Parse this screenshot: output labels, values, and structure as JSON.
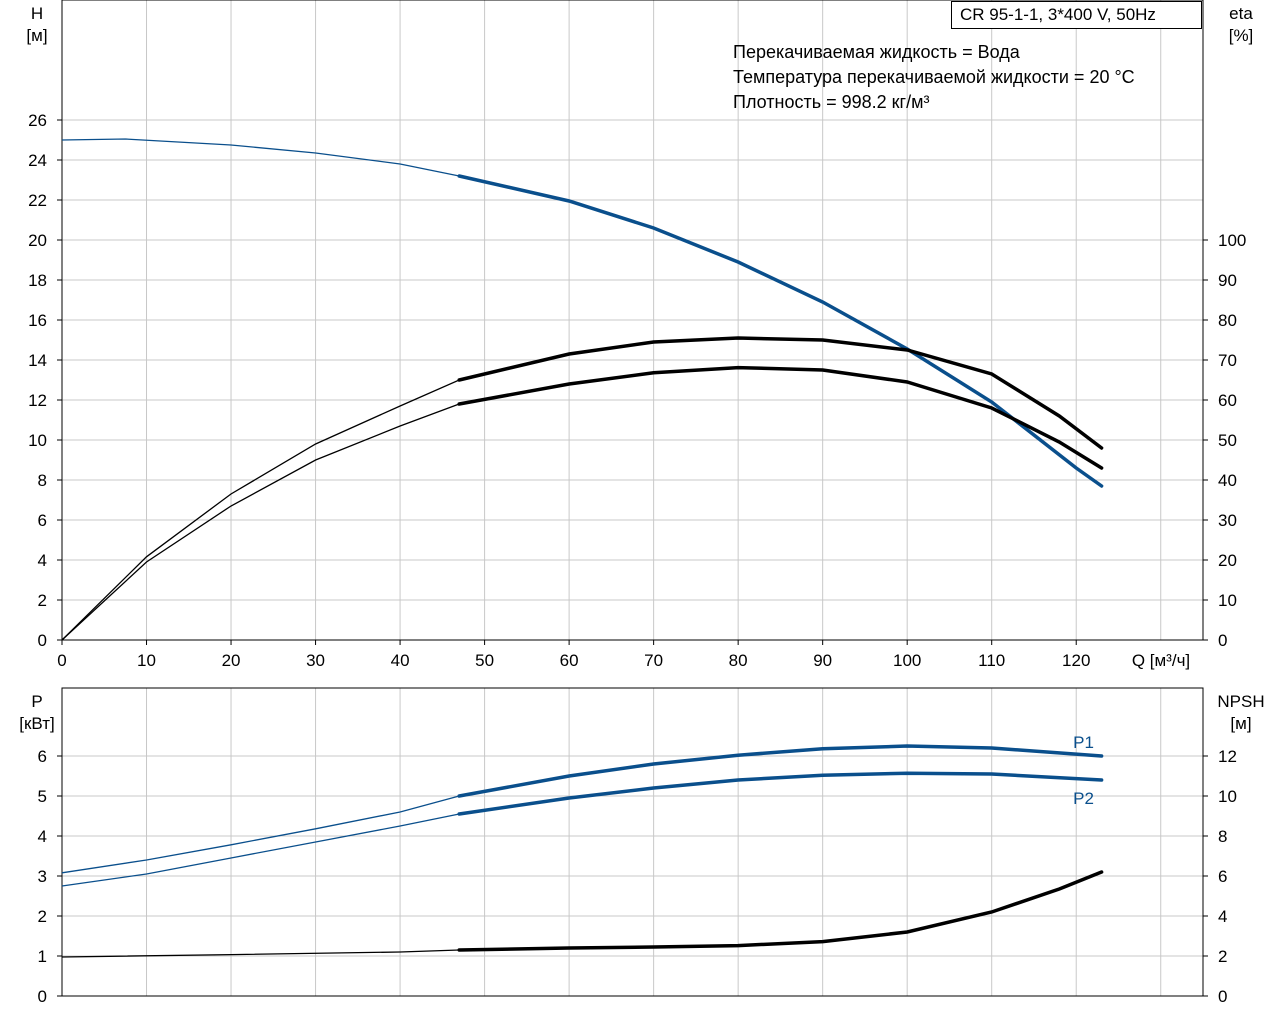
{
  "title_box": "CR 95-1-1, 3*400 V, 50Hz",
  "info_lines": [
    "Перекачиваемая жидкость = Вода",
    "Температура перекачиваемой жидкости = 20 °C",
    "Плотность = 998.2 кг/м³"
  ],
  "colors": {
    "blue": "#0a4f8c",
    "black": "#000000",
    "grid": "#c8c8c8"
  },
  "chart_data": [
    {
      "type": "line",
      "x_axis": {
        "label": "Q [м³/ч]",
        "range": [
          0,
          135
        ],
        "ticks": [
          0,
          10,
          20,
          30,
          40,
          50,
          60,
          70,
          80,
          90,
          100,
          110,
          120
        ]
      },
      "y_left": {
        "label_top": "H",
        "label_unit": "[м]",
        "range": [
          0,
          32
        ],
        "ticks": [
          0,
          2,
          4,
          6,
          8,
          10,
          12,
          14,
          16,
          18,
          20,
          22,
          24,
          26
        ]
      },
      "y_right": {
        "label_top": "eta",
        "label_unit": "[%]",
        "range": [
          0,
          160
        ],
        "ticks": [
          0,
          10,
          20,
          30,
          40,
          50,
          60,
          70,
          80,
          90,
          100
        ]
      },
      "grid": true,
      "operating_range": [
        47,
        123
      ],
      "series": [
        {
          "axis": "left",
          "color": "#0a4f8c",
          "x": [
            0,
            7.5,
            20,
            30,
            40,
            47,
            60,
            70,
            80,
            90,
            100,
            110,
            120,
            123
          ],
          "y": [
            25.0,
            25.05,
            24.75,
            24.35,
            23.8,
            23.2,
            21.95,
            20.6,
            18.9,
            16.9,
            14.55,
            11.9,
            8.6,
            7.7
          ]
        },
        {
          "axis": "right",
          "color": "#000000",
          "x": [
            0,
            10,
            20,
            30,
            40,
            47,
            60,
            70,
            80,
            90,
            100,
            110,
            118,
            123
          ],
          "y": [
            0,
            20.8,
            36.5,
            49,
            58.5,
            65,
            71.5,
            74.5,
            75.5,
            75,
            72.5,
            66.5,
            56,
            48
          ]
        },
        {
          "axis": "right",
          "color": "#000000",
          "x": [
            0,
            10,
            20,
            30,
            40,
            47,
            60,
            70,
            80,
            90,
            100,
            110,
            118,
            123
          ],
          "y": [
            0,
            19.5,
            33.5,
            45,
            53.5,
            59,
            64,
            66.8,
            68.1,
            67.5,
            64.5,
            58,
            49.5,
            43
          ]
        }
      ]
    },
    {
      "type": "line",
      "x_axis": {
        "label": "",
        "range": [
          0,
          135
        ],
        "ticks": [
          0,
          10,
          20,
          30,
          40,
          50,
          60,
          70,
          80,
          90,
          100,
          110,
          120
        ]
      },
      "y_left": {
        "label_top": "P",
        "label_unit": "[кВт]",
        "range": [
          0,
          7.7
        ],
        "ticks": [
          0,
          1,
          2,
          3,
          4,
          5,
          6
        ]
      },
      "y_right": {
        "label_top": "NPSH",
        "label_unit": "[м]",
        "range": [
          0,
          15.4
        ],
        "ticks": [
          0,
          2,
          4,
          6,
          8,
          10,
          12
        ]
      },
      "grid": true,
      "operating_range": [
        47,
        123
      ],
      "series": [
        {
          "name": "P1",
          "axis": "left",
          "color": "#0a4f8c",
          "x": [
            0,
            10,
            20,
            30,
            40,
            47,
            60,
            70,
            80,
            90,
            100,
            110,
            123
          ],
          "y": [
            3.08,
            3.4,
            3.78,
            4.18,
            4.6,
            5.0,
            5.5,
            5.8,
            6.02,
            6.18,
            6.25,
            6.2,
            6.0
          ]
        },
        {
          "name": "P2",
          "axis": "left",
          "color": "#0a4f8c",
          "x": [
            0,
            10,
            20,
            30,
            40,
            47,
            60,
            70,
            80,
            90,
            100,
            110,
            123
          ],
          "y": [
            2.75,
            3.05,
            3.45,
            3.85,
            4.25,
            4.55,
            4.95,
            5.2,
            5.4,
            5.52,
            5.57,
            5.55,
            5.4
          ]
        },
        {
          "axis": "right",
          "color": "#000000",
          "x": [
            0,
            20,
            40,
            47,
            60,
            70,
            80,
            90,
            100,
            110,
            118,
            123
          ],
          "y": [
            1.95,
            2.07,
            2.2,
            2.3,
            2.4,
            2.45,
            2.52,
            2.72,
            3.2,
            4.2,
            5.35,
            6.2
          ]
        }
      ]
    }
  ]
}
